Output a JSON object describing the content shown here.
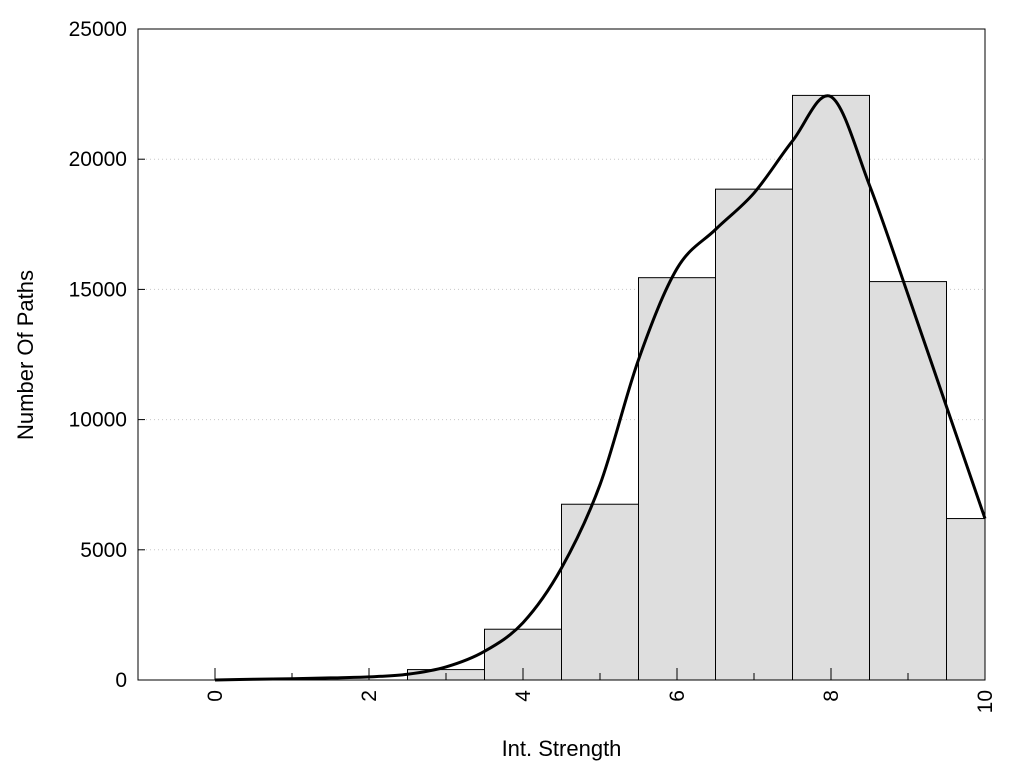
{
  "chart_data": {
    "type": "bar",
    "title": "",
    "xlabel": "Int. Strength",
    "ylabel": "Number Of Paths",
    "xlim": [
      -1,
      10
    ],
    "ylim": [
      0,
      25000
    ],
    "x_ticks": [
      "0",
      "2",
      "4",
      "6",
      "8",
      "10"
    ],
    "y_ticks": [
      "0",
      "5000",
      "10000",
      "15000",
      "20000",
      "25000"
    ],
    "grid": "horizontal dotted",
    "legend": "none",
    "histogram": {
      "bins": [
        {
          "x0": -0.5,
          "x1": 0.5,
          "value": 0
        },
        {
          "x0": 0.5,
          "x1": 1.5,
          "value": 0
        },
        {
          "x0": 1.5,
          "x1": 2.5,
          "value": 0
        },
        {
          "x0": 2.5,
          "x1": 3.5,
          "value": 400
        },
        {
          "x0": 3.5,
          "x1": 4.5,
          "value": 1950
        },
        {
          "x0": 4.5,
          "x1": 5.5,
          "value": 6750
        },
        {
          "x0": 5.5,
          "x1": 6.5,
          "value": 15450
        },
        {
          "x0": 6.5,
          "x1": 7.5,
          "value": 18850
        },
        {
          "x0": 7.5,
          "x1": 8.5,
          "value": 22450
        },
        {
          "x0": 8.5,
          "x1": 9.5,
          "value": 15300
        },
        {
          "x0": 9.5,
          "x1": 10.0,
          "value": 6200
        }
      ],
      "fill_color": "#dedede",
      "edge_color": "#000000"
    },
    "density_curve": {
      "color": "#000000",
      "x": [
        0,
        0.5,
        1,
        1.5,
        2,
        2.5,
        3,
        3.5,
        4,
        4.5,
        5,
        5.5,
        6,
        6.5,
        7,
        7.5,
        8,
        8.5,
        9,
        9.5,
        10
      ],
      "y": [
        0,
        30,
        50,
        80,
        120,
        220,
        500,
        1100,
        2200,
        4300,
        7500,
        12300,
        15800,
        17300,
        18700,
        20700,
        22400,
        19000,
        14800,
        10500,
        6200
      ]
    }
  }
}
